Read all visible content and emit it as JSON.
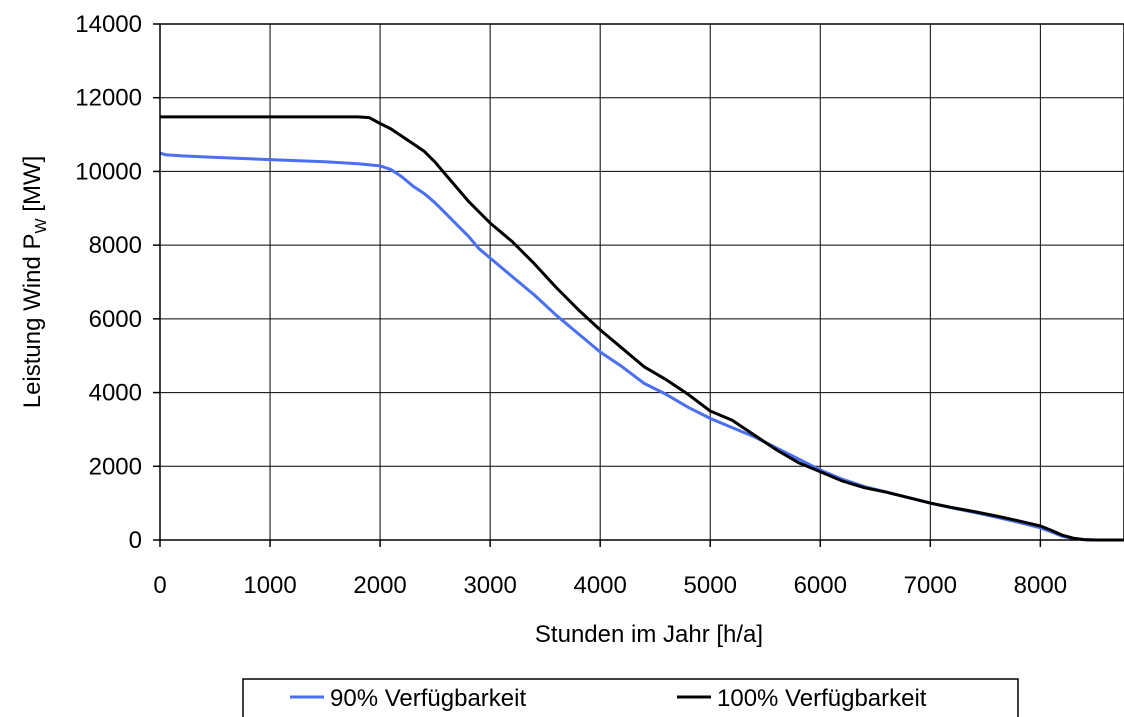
{
  "chart_data": {
    "type": "line",
    "title": "",
    "xlabel": "Stunden im Jahr [h/a]",
    "ylabel": {
      "prefix": "Leistung Wind P",
      "subscript": "W",
      "suffix": " [MW]"
    },
    "xlim": [
      0,
      8760
    ],
    "ylim": [
      0,
      14000
    ],
    "xticks": [
      0,
      1000,
      2000,
      3000,
      4000,
      5000,
      6000,
      7000,
      8000
    ],
    "yticks": [
      0,
      2000,
      4000,
      6000,
      8000,
      10000,
      12000,
      14000
    ],
    "grid": true,
    "legend_position": "bottom",
    "series": [
      {
        "name": "90% Verfügbarkeit",
        "color": "#4a6ff0",
        "x": [
          0,
          50,
          200,
          500,
          1000,
          1500,
          1800,
          2000,
          2100,
          2200,
          2300,
          2400,
          2500,
          2600,
          2700,
          2800,
          2900,
          3000,
          3200,
          3400,
          3600,
          3800,
          4000,
          4200,
          4400,
          4600,
          4800,
          5000,
          5200,
          5400,
          5600,
          5800,
          6000,
          6200,
          6400,
          6600,
          6800,
          7000,
          7200,
          7400,
          7600,
          7800,
          8000,
          8100,
          8200,
          8300,
          8400,
          8500,
          8600,
          8760
        ],
        "y": [
          10500,
          10450,
          10420,
          10380,
          10320,
          10260,
          10210,
          10150,
          10050,
          9850,
          9600,
          9400,
          9150,
          8850,
          8550,
          8250,
          7900,
          7650,
          7150,
          6650,
          6100,
          5600,
          5100,
          4700,
          4250,
          3950,
          3600,
          3300,
          3050,
          2800,
          2500,
          2200,
          1900,
          1650,
          1450,
          1300,
          1150,
          1000,
          870,
          750,
          620,
          480,
          330,
          220,
          100,
          40,
          5,
          0,
          0,
          0
        ]
      },
      {
        "name": "100% Verfügbarkeit",
        "color": "#000000",
        "x": [
          0,
          500,
          1000,
          1500,
          1800,
          1900,
          2000,
          2100,
          2200,
          2300,
          2400,
          2500,
          2600,
          2700,
          2800,
          2900,
          3000,
          3200,
          3400,
          3600,
          3800,
          4000,
          4200,
          4400,
          4600,
          4800,
          5000,
          5200,
          5400,
          5600,
          5800,
          6000,
          6200,
          6400,
          6600,
          6800,
          7000,
          7200,
          7400,
          7600,
          7800,
          8000,
          8100,
          8200,
          8300,
          8400,
          8500,
          8600,
          8760
        ],
        "y": [
          11480,
          11480,
          11480,
          11480,
          11480,
          11460,
          11300,
          11150,
          10950,
          10750,
          10550,
          10250,
          9900,
          9550,
          9200,
          8900,
          8600,
          8100,
          7500,
          6850,
          6250,
          5700,
          5200,
          4700,
          4350,
          3950,
          3500,
          3250,
          2850,
          2450,
          2100,
          1850,
          1600,
          1420,
          1300,
          1150,
          1000,
          880,
          770,
          650,
          520,
          380,
          260,
          130,
          50,
          10,
          0,
          0,
          0
        ]
      }
    ]
  }
}
